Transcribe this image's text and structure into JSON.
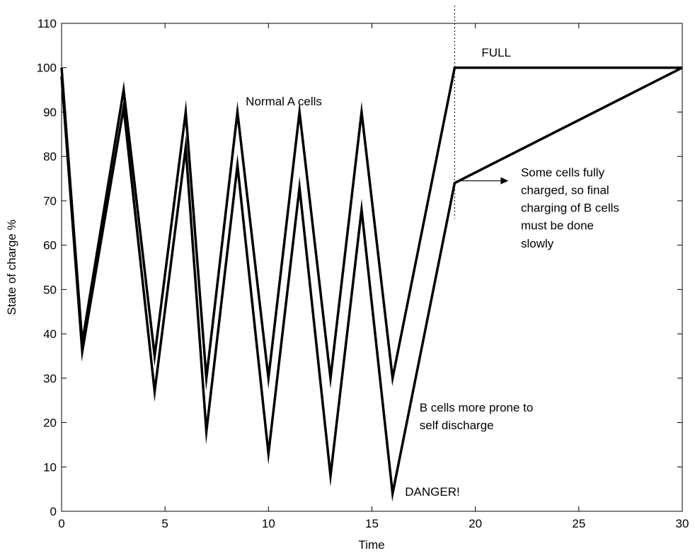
{
  "chart_data": {
    "type": "line",
    "title": "",
    "xlabel": "Time",
    "ylabel": "State of charge %",
    "xlim": [
      0,
      30
    ],
    "ylim": [
      0,
      110
    ],
    "xticks": [
      "0",
      "5",
      "10",
      "15",
      "20",
      "25",
      "30"
    ],
    "yticks": [
      "0",
      "10",
      "20",
      "30",
      "40",
      "50",
      "60",
      "70",
      "80",
      "90",
      "100",
      "110"
    ],
    "grid": false,
    "legend": "none",
    "line_color": "#000000",
    "series": [
      {
        "x": [
          0,
          1,
          3,
          4.5,
          6,
          7,
          8.5,
          10,
          11.5,
          13,
          14.5,
          16,
          19,
          30
        ],
        "y": [
          100,
          38,
          95,
          35,
          90,
          30,
          90,
          30,
          90,
          30,
          90,
          30,
          100,
          100
        ]
      },
      {
        "x": [
          0,
          1,
          3,
          4.5,
          6,
          7,
          8.5,
          10,
          11.5,
          13,
          14.5,
          16,
          19,
          30
        ],
        "y": [
          98,
          36,
          91,
          27,
          82,
          18,
          78,
          13,
          73,
          8,
          68,
          4,
          74,
          100
        ]
      }
    ],
    "vline": {
      "x": 19
    },
    "annotations": [
      {
        "text": "FULL",
        "x": 20.3,
        "y": 102.5
      },
      {
        "text": "Normal A cells",
        "x": 8.9,
        "y": 91.5
      },
      {
        "text": "Some cells fully",
        "x": 22.2,
        "y": 75.5
      },
      {
        "text": "charged, so final",
        "x": 22.2,
        "y": 71.5
      },
      {
        "text": "charging of B cells",
        "x": 22.2,
        "y": 67.5
      },
      {
        "text": "must be done",
        "x": 22.2,
        "y": 63.5
      },
      {
        "text": "slowly",
        "x": 22.2,
        "y": 59.5
      },
      {
        "text": "B cells more prone to",
        "x": 17.3,
        "y": 22.5
      },
      {
        "text": "self discharge",
        "x": 17.3,
        "y": 18.5
      },
      {
        "text": "DANGER!",
        "x": 16.6,
        "y": 3.5
      }
    ],
    "arrow": {
      "from": [
        19.2,
        74.5
      ],
      "to": [
        21.6,
        74.5
      ]
    }
  }
}
